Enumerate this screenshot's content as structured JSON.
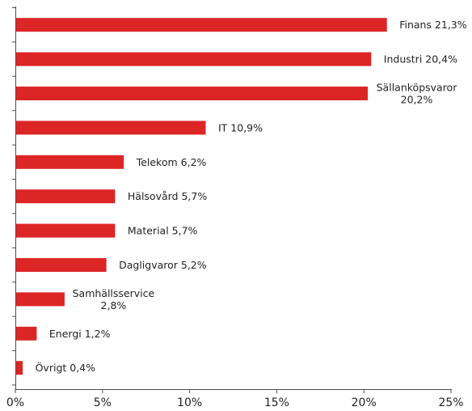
{
  "chart_data": {
    "type": "bar",
    "orientation": "horizontal",
    "title": "",
    "xlabel": "",
    "ylabel": "",
    "xlim": [
      0,
      25
    ],
    "x_ticks": [
      "0%",
      "5%",
      "10%",
      "15%",
      "20%",
      "25%"
    ],
    "x_tick_values": [
      0,
      5,
      10,
      15,
      20,
      25
    ],
    "grid": false,
    "legend": "none",
    "bar_color": "#dc2626",
    "categories": [
      "Finans",
      "Industri",
      "Sällanköpsvaror",
      "IT",
      "Telekom",
      "Hälsovård",
      "Material",
      "Dagligvaror",
      "Samhällsservice",
      "Energi",
      "Övrigt"
    ],
    "values": [
      21.3,
      20.4,
      20.2,
      10.9,
      6.2,
      5.7,
      5.7,
      5.2,
      2.8,
      1.2,
      0.4
    ],
    "labels": [
      [
        "Finans 21,3%"
      ],
      [
        "Industri 20,4%"
      ],
      [
        "Sällanköpsvaror",
        "20,2%"
      ],
      [
        "IT 10,9%"
      ],
      [
        "Telekom 6,2%"
      ],
      [
        "Hälsovård 5,7%"
      ],
      [
        "Material  5,7%"
      ],
      [
        "Dagligvaror 5,2%"
      ],
      [
        "Samhällsservice",
        "2,8%"
      ],
      [
        "Energi 1,2%"
      ],
      [
        "Övrigt 0,4%"
      ]
    ]
  }
}
